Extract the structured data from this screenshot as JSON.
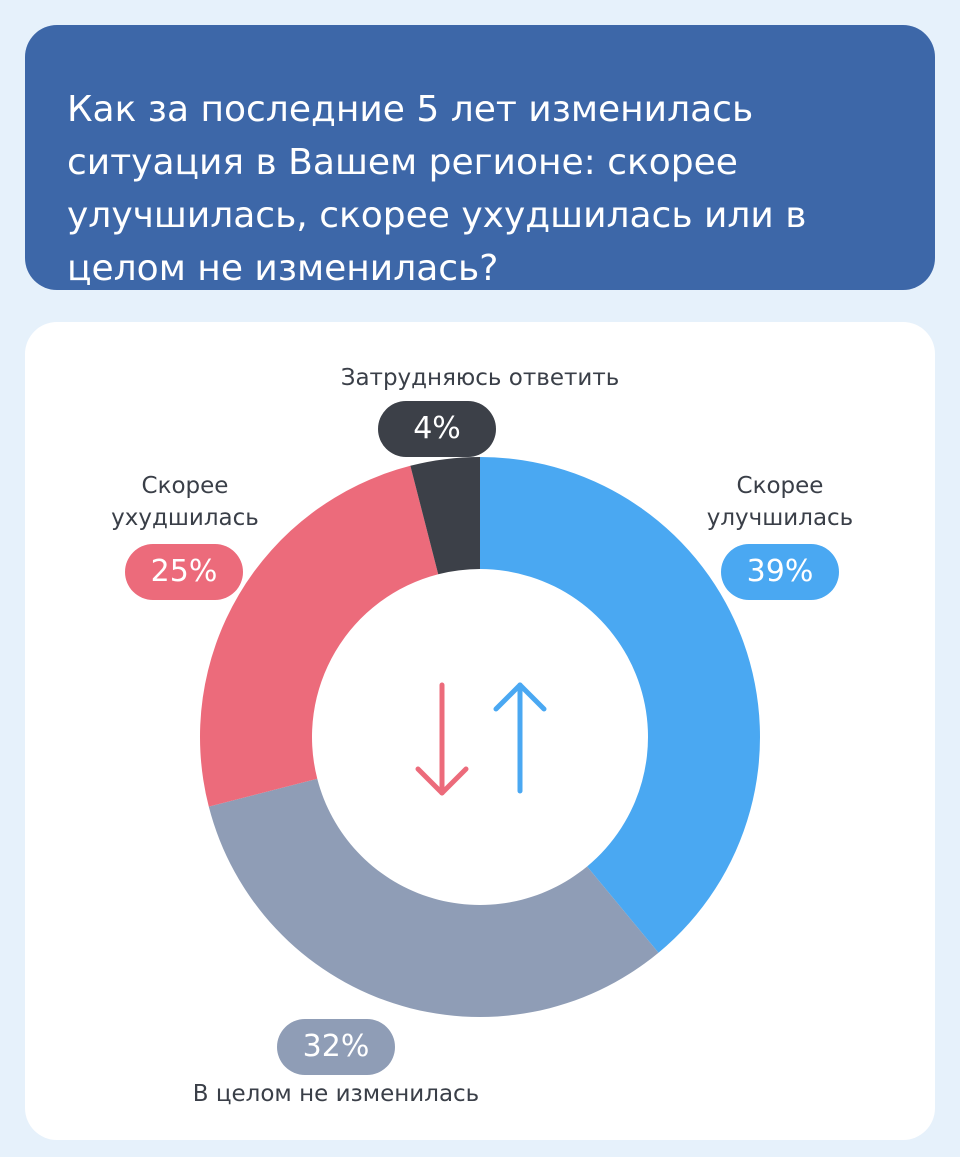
{
  "header": {
    "title": "Как за последние 5 лет изменилась ситуация в Вашем регионе: скорее улучшилась, скорее ухудшилась или в целом не изменилась?"
  },
  "colors": {
    "background": "#e6f1fb",
    "header_bg": "#3d67a8",
    "improved": "#4aa8f2",
    "unchanged": "#8f9db6",
    "worsened": "#ec6b7b",
    "hard_to_say": "#3c4048"
  },
  "icons": [
    "arrow-down-icon",
    "arrow-up-icon"
  ],
  "chart_data": {
    "type": "pie",
    "title": "Как за последние 5 лет изменилась ситуация в Вашем регионе: скорее улучшилась, скорее ухудшилась или в целом не изменилась?",
    "slices": [
      {
        "label": "Скорее улучшилась",
        "value": 39,
        "display": "39%",
        "color": "#4aa8f2"
      },
      {
        "label": "В целом не изменилась",
        "value": 32,
        "display": "32%",
        "color": "#8f9db6"
      },
      {
        "label": "Скорее ухудшилась",
        "value": 25,
        "display": "25%",
        "color": "#ec6b7b"
      },
      {
        "label": "Затрудняюсь ответить",
        "value": 4,
        "display": "4%",
        "color": "#3c4048"
      }
    ]
  }
}
